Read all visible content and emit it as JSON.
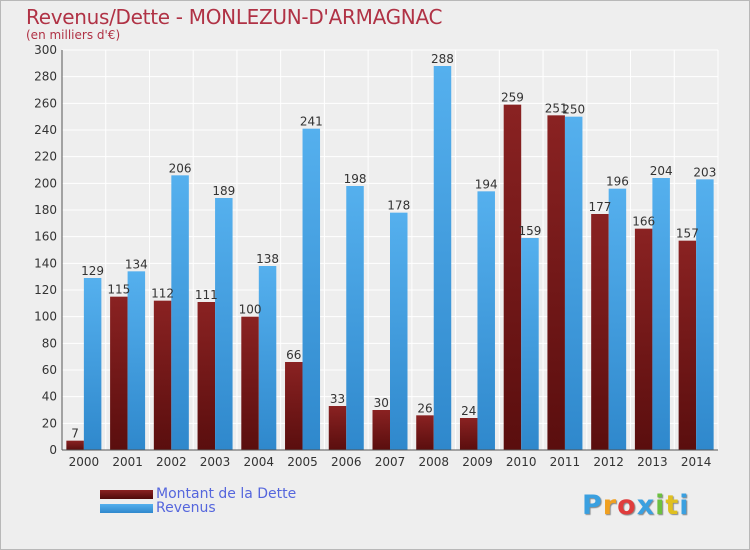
{
  "page": {
    "title": "Revenus/Dette - MONLEZUN-D'ARMAGNAC",
    "subtitle": "(en milliers d'€)",
    "brand": "Proxiti"
  },
  "chart_data": {
    "type": "bar",
    "title": "Revenus/Dette - MONLEZUN-D'ARMAGNAC",
    "subtitle": "(en milliers d'€)",
    "xlabel": "",
    "ylabel": "",
    "ylim": [
      0,
      300
    ],
    "yticks": [
      0,
      20,
      40,
      60,
      80,
      100,
      120,
      140,
      160,
      180,
      200,
      220,
      240,
      260,
      280,
      300
    ],
    "grid": true,
    "legend_position": "bottom-left",
    "categories": [
      "2000",
      "2001",
      "2002",
      "2003",
      "2004",
      "2005",
      "2006",
      "2007",
      "2008",
      "2009",
      "2010",
      "2011",
      "2012",
      "2013",
      "2014"
    ],
    "series": [
      {
        "name": "Montant de la Dette",
        "color": "#7a1a1a",
        "values": [
          7,
          115,
          112,
          111,
          100,
          66,
          33,
          30,
          26,
          24,
          259,
          251,
          177,
          166,
          157
        ]
      },
      {
        "name": "Revenus",
        "color": "#4aa3e6",
        "values": [
          129,
          134,
          206,
          189,
          138,
          241,
          198,
          178,
          288,
          194,
          159,
          250,
          196,
          204,
          203
        ]
      }
    ]
  },
  "logo_colors": [
    "#3aa0e0",
    "#f0a020",
    "#e03c3c",
    "#3aa0e0",
    "#6cc040",
    "#e0c020",
    "#3aa0e0"
  ]
}
